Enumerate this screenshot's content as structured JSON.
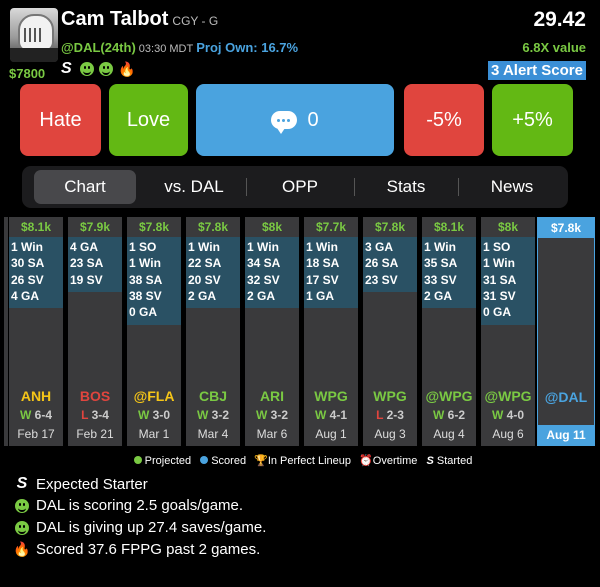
{
  "player": {
    "name": "Cam Talbot",
    "team_pos": "CGY - G",
    "salary": "$7800",
    "opponent": "@DAL(24th)",
    "game_time": "03:30 MDT",
    "proj_own": "Proj Own: 16.7%",
    "points": "29.42",
    "value": "6.8X value",
    "alert_score": "3 Alert Score"
  },
  "actions": {
    "hate": "Hate",
    "love": "Love",
    "comments": "0",
    "minus": "-5%",
    "plus": "+5%"
  },
  "tabs": [
    "Chart",
    "vs. DAL",
    "OPP",
    "Stats",
    "News"
  ],
  "chart_data": {
    "type": "table",
    "columns": [
      {
        "salary": "$8.1k",
        "stats": [
          "1 Win",
          "30 SA",
          "26 SV",
          "4 GA"
        ],
        "opp": "ANH",
        "opp_color": "#f5c518",
        "res_letter": "W",
        "res_score": "6-4",
        "date": "Feb 17"
      },
      {
        "salary": "$7.9k",
        "stats": [
          "4 GA",
          "23 SA",
          "19 SV"
        ],
        "opp": "BOS",
        "opp_color": "#e0453e",
        "res_letter": "L",
        "res_score": "3-4",
        "date": "Feb 21"
      },
      {
        "salary": "$7.8k",
        "stats": [
          "1 SO",
          "1 Win",
          "38 SA",
          "38 SV",
          "0 GA"
        ],
        "opp": "@FLA",
        "opp_color": "#f5c518",
        "res_letter": "W",
        "res_score": "3-0",
        "date": "Mar 1"
      },
      {
        "salary": "$7.8k",
        "stats": [
          "1 Win",
          "22 SA",
          "20 SV",
          "2 GA"
        ],
        "opp": "CBJ",
        "opp_color": "#7ac943",
        "res_letter": "W",
        "res_score": "3-2",
        "date": "Mar 4"
      },
      {
        "salary": "$8k",
        "stats": [
          "1 Win",
          "34 SA",
          "32 SV",
          "2 GA"
        ],
        "opp": "ARI",
        "opp_color": "#7ac943",
        "res_letter": "W",
        "res_score": "3-2",
        "date": "Mar 6"
      },
      {
        "salary": "$7.7k",
        "stats": [
          "1 Win",
          "18 SA",
          "17 SV",
          "1 GA"
        ],
        "opp": "WPG",
        "opp_color": "#7ac943",
        "res_letter": "W",
        "res_score": "4-1",
        "date": "Aug 1"
      },
      {
        "salary": "$7.8k",
        "stats": [
          "3 GA",
          "26 SA",
          "23 SV"
        ],
        "opp": "WPG",
        "opp_color": "#7ac943",
        "res_letter": "L",
        "res_score": "2-3",
        "date": "Aug 3"
      },
      {
        "salary": "$8.1k",
        "stats": [
          "1 Win",
          "35 SA",
          "33 SV",
          "2 GA"
        ],
        "opp": "@WPG",
        "opp_color": "#7ac943",
        "res_letter": "W",
        "res_score": "6-2",
        "date": "Aug 4"
      },
      {
        "salary": "$8k",
        "stats": [
          "1 SO",
          "1 Win",
          "31 SA",
          "31 SV",
          "0 GA"
        ],
        "opp": "@WPG",
        "opp_color": "#7ac943",
        "res_letter": "W",
        "res_score": "4-0",
        "date": "Aug 6"
      }
    ],
    "upcoming": {
      "salary": "$7.8k",
      "opp": "@DAL",
      "date": "Aug 11"
    }
  },
  "legend": {
    "projected": "Projected",
    "scored": "Scored",
    "perfect": "In Perfect Lineup",
    "overtime": "Overtime",
    "started": "Started"
  },
  "notes": [
    "Expected Starter",
    "DAL is scoring 2.5 goals/game.",
    "DAL is giving up 27.4 saves/game.",
    "Scored 37.6 FPPG past 2 games."
  ]
}
